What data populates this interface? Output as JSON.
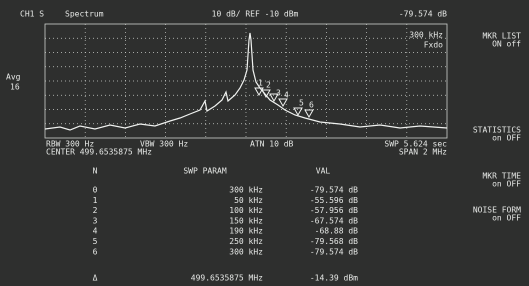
{
  "header": {
    "channel": "CH1 S",
    "mode": "Spectrum",
    "scale": "10 dB/ REF -10 dBm",
    "marker_readout": "-79.574 dB"
  },
  "left": {
    "avg": "Avg",
    "avg_count": "16"
  },
  "plot": {
    "rbw_label": "300 kHz",
    "fixed": "Fxdo",
    "markers": [
      "1",
      "2",
      "3",
      "4",
      "5",
      "6"
    ]
  },
  "footer": {
    "rbw": "RBW 300 Hz",
    "vbw": "VBW 300 Hz",
    "atn": "ATN 10 dB",
    "swp": "SWP 5.624 sec",
    "center": "CENTER 499.6535875 MHz",
    "span": "SPAN 2 MHz"
  },
  "softkeys": [
    {
      "label": "MKR LIST",
      "state": "ON off"
    },
    {
      "label": "STATISTICS",
      "state": "on OFF"
    },
    {
      "label": "MKR TIME",
      "state": "on OFF"
    },
    {
      "label": "NOISE FORM",
      "state": "on OFF"
    }
  ],
  "table": {
    "headers": [
      "N",
      "SWP PARAM",
      "VAL"
    ],
    "rows": [
      [
        "0",
        "300 kHz",
        "-79.574 dB"
      ],
      [
        "1",
        "50 kHz",
        "-55.596 dB"
      ],
      [
        "2",
        "100 kHz",
        "-57.956 dB"
      ],
      [
        "3",
        "150 kHz",
        "-67.574 dB"
      ],
      [
        "4",
        "190 kHz",
        "-68.88 dB"
      ],
      [
        "5",
        "250 kHz",
        "-79.568 dB"
      ],
      [
        "6",
        "300 kHz",
        "-79.574 dB"
      ]
    ],
    "delta": [
      "Δ",
      "499.6535875 MHz",
      "-14.39 dBm"
    ]
  }
}
